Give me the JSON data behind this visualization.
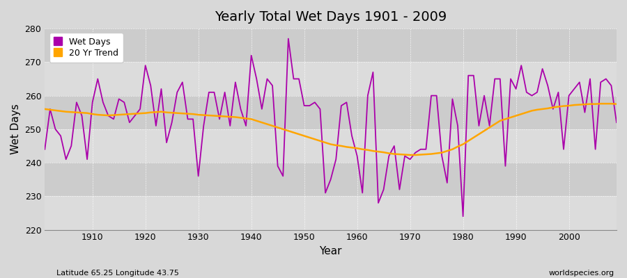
{
  "title": "Yearly Total Wet Days 1901 - 2009",
  "xlabel": "Year",
  "ylabel": "Wet Days",
  "subtitle_left": "Latitude 65.25 Longitude 43.75",
  "subtitle_right": "worldspecies.org",
  "ylim": [
    220,
    280
  ],
  "xlim": [
    1901,
    2009
  ],
  "legend_labels": [
    "Wet Days",
    "20 Yr Trend"
  ],
  "wet_days_color": "#AA00AA",
  "trend_color": "#FFA500",
  "background_color": "#D8D8D8",
  "plot_bg_light": "#DCDCDC",
  "plot_bg_dark": "#C8C8C8",
  "years": [
    1901,
    1902,
    1903,
    1904,
    1905,
    1906,
    1907,
    1908,
    1909,
    1910,
    1911,
    1912,
    1913,
    1914,
    1915,
    1916,
    1917,
    1918,
    1919,
    1920,
    1921,
    1922,
    1923,
    1924,
    1925,
    1926,
    1927,
    1928,
    1929,
    1930,
    1931,
    1932,
    1933,
    1934,
    1935,
    1936,
    1937,
    1938,
    1939,
    1940,
    1941,
    1942,
    1943,
    1944,
    1945,
    1946,
    1947,
    1948,
    1949,
    1950,
    1951,
    1952,
    1953,
    1954,
    1955,
    1956,
    1957,
    1958,
    1959,
    1960,
    1961,
    1962,
    1963,
    1964,
    1965,
    1966,
    1967,
    1968,
    1969,
    1970,
    1971,
    1972,
    1973,
    1974,
    1975,
    1976,
    1977,
    1978,
    1979,
    1980,
    1981,
    1982,
    1983,
    1984,
    1985,
    1986,
    1987,
    1988,
    1989,
    1990,
    1991,
    1992,
    1993,
    1994,
    1995,
    1996,
    1997,
    1998,
    1999,
    2000,
    2001,
    2002,
    2003,
    2004,
    2005,
    2006,
    2007,
    2008,
    2009
  ],
  "wet_days": [
    244,
    256,
    250,
    248,
    241,
    245,
    258,
    254,
    241,
    258,
    265,
    258,
    254,
    253,
    259,
    258,
    252,
    254,
    256,
    269,
    263,
    251,
    262,
    246,
    252,
    261,
    264,
    253,
    253,
    236,
    251,
    261,
    261,
    253,
    261,
    251,
    264,
    256,
    251,
    272,
    265,
    256,
    265,
    263,
    239,
    236,
    277,
    265,
    265,
    257,
    257,
    258,
    256,
    231,
    235,
    241,
    257,
    258,
    248,
    242,
    231,
    260,
    267,
    228,
    232,
    242,
    245,
    232,
    242,
    241,
    243,
    244,
    244,
    260,
    260,
    242,
    234,
    259,
    251,
    224,
    266,
    266,
    251,
    260,
    251,
    265,
    265,
    239,
    265,
    262,
    269,
    261,
    260,
    261,
    268,
    263,
    256,
    261,
    244,
    260,
    262,
    264,
    255,
    265,
    244,
    264,
    265,
    263,
    252
  ],
  "trend": [
    256.0,
    255.8,
    255.6,
    255.4,
    255.2,
    255.1,
    255.0,
    254.9,
    254.8,
    254.5,
    254.3,
    254.2,
    254.1,
    254.2,
    254.3,
    254.4,
    254.5,
    254.6,
    254.7,
    254.8,
    255.0,
    255.1,
    255.2,
    255.0,
    254.9,
    254.8,
    254.7,
    254.6,
    254.5,
    254.3,
    254.2,
    254.1,
    254.0,
    253.9,
    253.8,
    253.7,
    253.6,
    253.4,
    253.2,
    253.0,
    252.5,
    252.0,
    251.5,
    251.0,
    250.5,
    250.0,
    249.5,
    249.0,
    248.5,
    248.0,
    247.5,
    247.0,
    246.5,
    246.0,
    245.5,
    245.2,
    245.0,
    244.7,
    244.5,
    244.3,
    244.0,
    243.8,
    243.5,
    243.3,
    243.1,
    242.8,
    242.6,
    242.5,
    242.4,
    242.3,
    242.3,
    242.4,
    242.5,
    242.6,
    242.8,
    243.0,
    243.5,
    244.0,
    244.8,
    245.5,
    246.5,
    247.5,
    248.5,
    249.5,
    250.5,
    251.5,
    252.5,
    253.0,
    253.5,
    254.0,
    254.5,
    255.0,
    255.5,
    255.8,
    256.0,
    256.2,
    256.5,
    256.7,
    256.9,
    257.0,
    257.2,
    257.3,
    257.4,
    257.5,
    257.5,
    257.6,
    257.6,
    257.6,
    257.5
  ]
}
